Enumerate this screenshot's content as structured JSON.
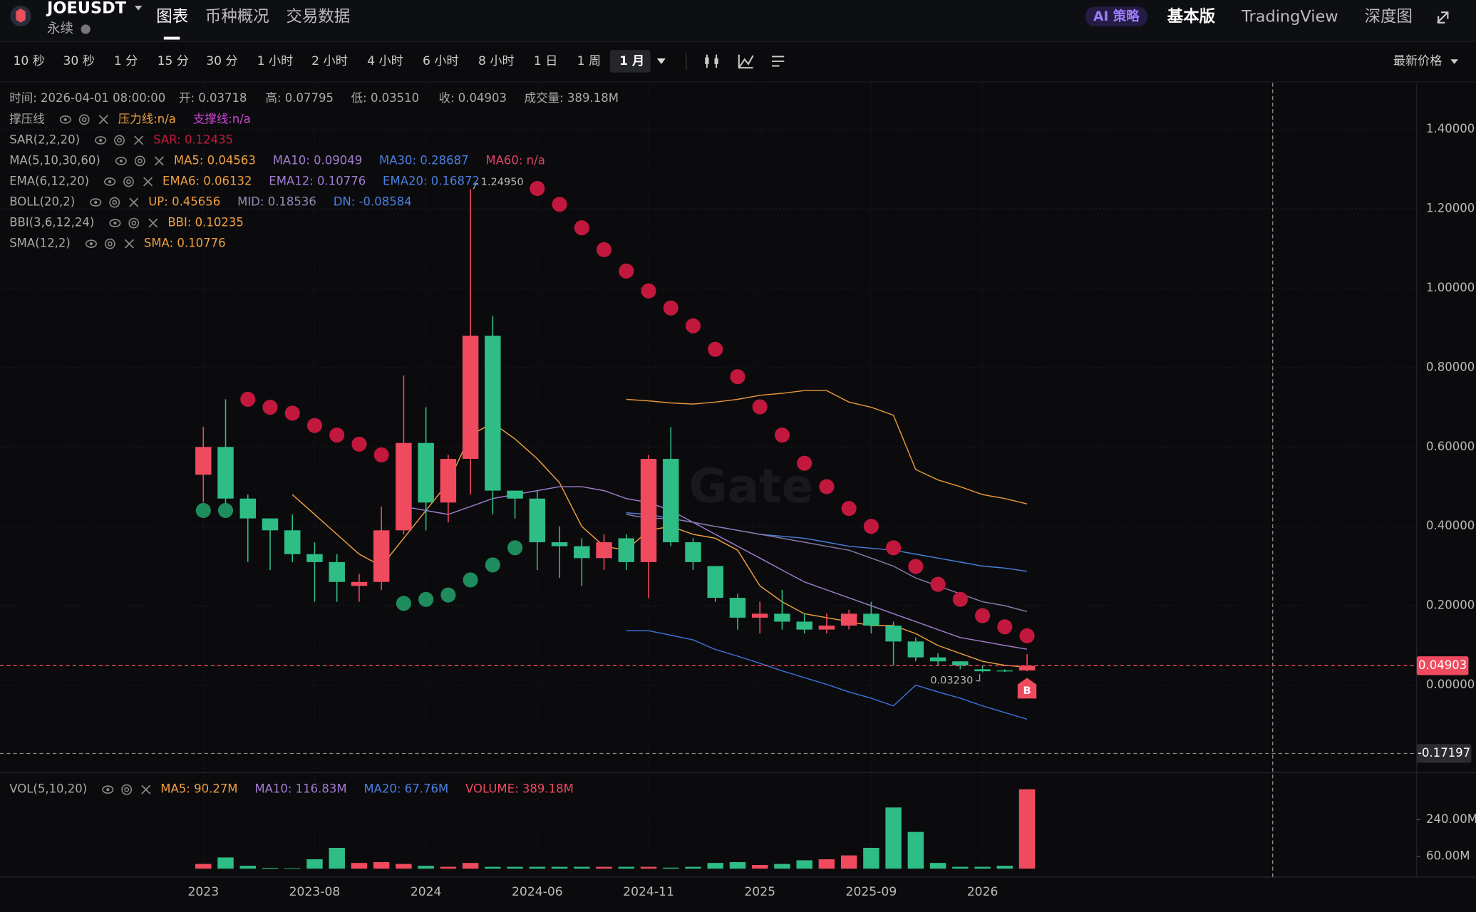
{
  "header": {
    "symbol": "JOEUSDT",
    "contract": "永续",
    "tabs": [
      "图表",
      "币种概况",
      "交易数据"
    ],
    "ai_badge": "AI 策略",
    "views": [
      "基本版",
      "TradingView",
      "深度图"
    ]
  },
  "toolbar": {
    "intervals": [
      "10 秒",
      "30 秒",
      "1 分",
      "15 分",
      "30 分",
      "1 小时",
      "2 小时",
      "4 小时",
      "6 小时",
      "8 小时",
      "1 日",
      "1 周",
      "1 月"
    ],
    "price_source": "最新价格"
  },
  "info": [
    "时间: 2026-04-01 08:00:00",
    "开: 0.03718",
    "高: 0.07795",
    "低: 0.03510",
    "收: 0.04903",
    "成交量: 389.18M"
  ],
  "indicators": [
    {
      "name": "撑压线",
      "items": [
        {
          "text": "压力线:n/a",
          "color": "#f0a040"
        },
        {
          "text": "支撑线:n/a",
          "color": "#d048d8"
        }
      ]
    },
    {
      "name": "SAR(2,2,20)",
      "items": [
        {
          "text": "SAR: 0.12435",
          "color": "#c3183e"
        }
      ]
    },
    {
      "name": "MA(5,10,30,60)",
      "items": [
        {
          "text": "MA5: 0.04563",
          "color": "#f0a040"
        },
        {
          "text": "MA10: 0.09049",
          "color": "#a07cd0"
        },
        {
          "text": "MA30: 0.28687",
          "color": "#4a7fe0"
        },
        {
          "text": "MA60: n/a",
          "color": "#e0406a"
        }
      ]
    },
    {
      "name": "EMA(6,12,20)",
      "items": [
        {
          "text": "EMA6: 0.06132",
          "color": "#f0a040"
        },
        {
          "text": "EMA12: 0.10776",
          "color": "#a07cd0"
        },
        {
          "text": "EMA20: 0.16872",
          "color": "#4a7fe0"
        }
      ]
    },
    {
      "name": "BOLL(20,2)",
      "items": [
        {
          "text": "UP: 0.45656",
          "color": "#f0a040"
        },
        {
          "text": "MID: 0.18536",
          "color": "#9a8ab8"
        },
        {
          "text": "DN: -0.08584",
          "color": "#4a7fe0"
        }
      ]
    },
    {
      "name": "BBI(3,6,12,24)",
      "items": [
        {
          "text": "BBI: 0.10235",
          "color": "#f0a040"
        }
      ]
    },
    {
      "name": "SMA(12,2)",
      "items": [
        {
          "text": "SMA: 0.10776",
          "color": "#f0a040"
        }
      ]
    }
  ],
  "volume_indicator": {
    "name": "VOL(5,10,20)",
    "items": [
      {
        "text": "MA5: 90.27M",
        "color": "#f0a040"
      },
      {
        "text": "MA10: 116.83M",
        "color": "#a07cd0"
      },
      {
        "text": "MA20: 67.76M",
        "color": "#4a7fe0"
      },
      {
        "text": "VOLUME: 389.18M",
        "color": "#f04a5e"
      }
    ]
  },
  "watermark": "Gate",
  "chart_data": {
    "type": "candlestick",
    "categories": [
      "2023",
      null,
      null,
      null,
      null,
      "2023-08",
      null,
      null,
      null,
      null,
      "2024",
      null,
      null,
      null,
      null,
      "2024-06",
      null,
      null,
      null,
      null,
      "2024-11",
      null,
      null,
      null,
      null,
      "2025",
      null,
      null,
      null,
      null,
      "2025-09",
      null,
      null,
      null,
      null,
      "2026",
      null,
      null
    ],
    "open": [
      0.53,
      0.6,
      0.47,
      0.42,
      0.39,
      0.33,
      0.31,
      0.25,
      0.26,
      0.39,
      0.61,
      0.46,
      0.57,
      0.88,
      0.49,
      0.47,
      0.36,
      0.35,
      0.32,
      0.37,
      0.31,
      0.57,
      0.36,
      0.3,
      0.22,
      0.17,
      0.18,
      0.16,
      0.14,
      0.15,
      0.18,
      0.15,
      0.11,
      0.07,
      0.06,
      0.04,
      0.037,
      0.03718
    ],
    "high": [
      0.65,
      0.72,
      0.48,
      0.42,
      0.43,
      0.36,
      0.33,
      0.28,
      0.45,
      0.78,
      0.7,
      0.58,
      1.2495,
      0.93,
      0.49,
      0.49,
      0.4,
      0.37,
      0.38,
      0.38,
      0.58,
      0.65,
      0.37,
      0.3,
      0.23,
      0.21,
      0.24,
      0.18,
      0.18,
      0.19,
      0.21,
      0.16,
      0.12,
      0.08,
      0.06,
      0.05,
      0.04,
      0.07795
    ],
    "low": [
      0.46,
      0.43,
      0.31,
      0.29,
      0.31,
      0.21,
      0.21,
      0.21,
      0.24,
      0.38,
      0.39,
      0.41,
      0.48,
      0.43,
      0.42,
      0.29,
      0.27,
      0.25,
      0.29,
      0.29,
      0.22,
      0.35,
      0.29,
      0.21,
      0.14,
      0.13,
      0.14,
      0.13,
      0.13,
      0.14,
      0.13,
      0.05,
      0.06,
      0.05,
      0.04,
      0.0323,
      0.033,
      0.0351
    ],
    "close": [
      0.6,
      0.47,
      0.42,
      0.39,
      0.33,
      0.31,
      0.26,
      0.26,
      0.39,
      0.61,
      0.46,
      0.57,
      0.88,
      0.49,
      0.47,
      0.36,
      0.35,
      0.32,
      0.36,
      0.31,
      0.57,
      0.36,
      0.31,
      0.22,
      0.17,
      0.18,
      0.16,
      0.14,
      0.15,
      0.18,
      0.15,
      0.11,
      0.07,
      0.06,
      0.05,
      0.035,
      0.036,
      0.04903
    ],
    "up_color": "#f04a5e",
    "down_color": "#2ebd85",
    "ylim": [
      -0.218,
      1.517
    ],
    "yticks": [
      {
        "value": 1.4,
        "label": "1.40000"
      },
      {
        "value": 1.2,
        "label": "1.20000"
      },
      {
        "value": 1.0,
        "label": "1.00000"
      },
      {
        "value": 0.8,
        "label": "0.80000"
      },
      {
        "value": 0.6,
        "label": "0.60000"
      },
      {
        "value": 0.4,
        "label": "0.40000"
      },
      {
        "value": 0.2,
        "label": "0.20000"
      },
      {
        "value": 0,
        "label": "0.00000"
      }
    ],
    "grid": true,
    "last_price": {
      "value": 0.04903,
      "label": "0.04903"
    },
    "crosshair": {
      "value": -0.17197,
      "label": "-0.17197"
    },
    "high_label": {
      "value": 1.2495,
      "label": "1.24950"
    },
    "low_label": {
      "value": 0.0323,
      "label": "0.03230"
    },
    "marker": "B",
    "series": [
      {
        "style": "dots",
        "up_color": "#1e8c5c",
        "down_color": "#c3183e",
        "values": [
          0.44,
          0.44,
          0.72,
          0.7,
          0.685,
          0.654,
          0.63,
          0.607,
          0.58,
          0.206,
          0.216,
          0.227,
          0.265,
          0.303,
          0.346,
          1.251,
          1.211,
          1.152,
          1.097,
          1.043,
          0.993,
          0.95,
          0.905,
          0.846,
          0.777,
          0.701,
          0.63,
          0.559,
          0.5,
          0.445,
          0.4,
          0.346,
          0.299,
          0.254,
          0.216,
          0.175,
          0.147,
          0.12435
        ]
      },
      {
        "style": "line",
        "color": "#f0a040",
        "values": [
          null,
          null,
          null,
          null,
          0.48,
          0.43,
          0.38,
          0.33,
          0.3,
          0.37,
          0.44,
          0.51,
          0.63,
          0.66,
          0.62,
          0.57,
          0.51,
          0.4,
          0.35,
          0.34,
          0.39,
          0.4,
          0.38,
          0.37,
          0.34,
          0.25,
          0.21,
          0.18,
          0.17,
          0.16,
          0.15,
          0.15,
          0.13,
          0.1,
          0.08,
          0.06,
          0.05,
          0.04563
        ]
      },
      {
        "style": "line",
        "color": "#a07cd0",
        "values": [
          null,
          null,
          null,
          null,
          null,
          null,
          null,
          null,
          null,
          0.45,
          0.44,
          0.43,
          0.45,
          0.47,
          0.48,
          0.49,
          0.5,
          0.5,
          0.49,
          0.47,
          0.46,
          0.44,
          0.41,
          0.38,
          0.35,
          0.32,
          0.29,
          0.26,
          0.24,
          0.22,
          0.2,
          0.18,
          0.16,
          0.14,
          0.12,
          0.11,
          0.1,
          0.09049
        ]
      },
      {
        "style": "line",
        "color": "#4a7fe0",
        "values": [
          null,
          null,
          null,
          null,
          null,
          null,
          null,
          null,
          null,
          null,
          null,
          null,
          null,
          null,
          null,
          null,
          null,
          null,
          null,
          0.434,
          0.43,
          0.42,
          0.41,
          0.4,
          0.39,
          0.38,
          0.375,
          0.37,
          0.36,
          0.35,
          0.345,
          0.34,
          0.33,
          0.32,
          0.31,
          0.3,
          0.295,
          0.28687
        ]
      },
      {
        "style": "line",
        "color": "#e8963a",
        "values": [
          null,
          null,
          null,
          null,
          null,
          null,
          null,
          null,
          null,
          null,
          null,
          null,
          null,
          null,
          null,
          null,
          null,
          null,
          null,
          0.72,
          0.716,
          0.711,
          0.708,
          0.713,
          0.72,
          0.73,
          0.735,
          0.742,
          0.742,
          0.713,
          0.7,
          0.68,
          0.543,
          0.517,
          0.5,
          0.48,
          0.47,
          0.45656
        ]
      },
      {
        "style": "line",
        "color": "#8a7aa8",
        "values": [
          null,
          null,
          null,
          null,
          null,
          null,
          null,
          null,
          null,
          null,
          null,
          null,
          null,
          null,
          null,
          null,
          null,
          null,
          null,
          0.43,
          0.42,
          0.42,
          0.41,
          0.4,
          0.39,
          0.38,
          0.37,
          0.36,
          0.35,
          0.34,
          0.32,
          0.3,
          0.27,
          0.25,
          0.23,
          0.21,
          0.2,
          0.18536
        ]
      },
      {
        "style": "line",
        "color": "#3b6fd8",
        "values": [
          null,
          null,
          null,
          null,
          null,
          null,
          null,
          null,
          null,
          null,
          null,
          null,
          null,
          null,
          null,
          null,
          null,
          null,
          null,
          0.137,
          0.137,
          0.126,
          0.114,
          0.09,
          0.073,
          0.055,
          0.036,
          0.019,
          0.002,
          -0.017,
          -0.033,
          -0.052,
          0,
          -0.017,
          -0.033,
          -0.052,
          -0.069,
          -0.08584
        ]
      }
    ],
    "volume": {
      "values": [
        23,
        55,
        14,
        4,
        3,
        46,
        102,
        28,
        32,
        23,
        14,
        9,
        28,
        9,
        9,
        9,
        9,
        9,
        9,
        9,
        9,
        5,
        9,
        28,
        32,
        18,
        23,
        41,
        46,
        65,
        102,
        300,
        180,
        28,
        9,
        9,
        14,
        389.18
      ],
      "ylim": [
        0,
        466
      ],
      "yticks": [
        {
          "value": 240,
          "label": "240.00M"
        },
        {
          "value": 60,
          "label": "60.00M"
        }
      ]
    }
  }
}
